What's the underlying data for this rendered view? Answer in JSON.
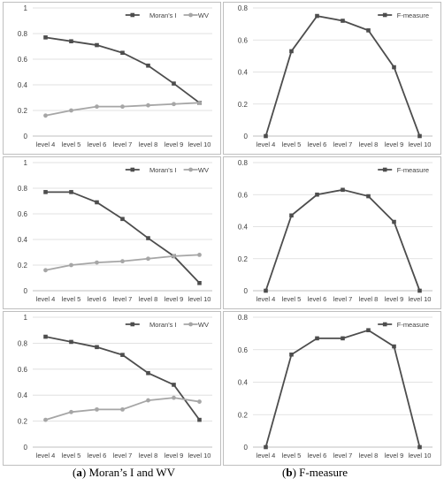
{
  "colors": {
    "morans": "#4d4d4d",
    "wv": "#a6a6a6",
    "fmeasure": "#4d4d4d",
    "frame": "#bfbfbf",
    "grid": "#d9d9d9"
  },
  "captions": {
    "a_label": "a",
    "a_text": "Moran’s I and WV",
    "b_label": "b",
    "b_text": "F-measure"
  },
  "chart_data": [
    {
      "type": "line",
      "legend": "top-right",
      "grid": "horizontal",
      "categories": [
        "level 4",
        "level 5",
        "level 6",
        "level 7",
        "level 8",
        "level 9",
        "level 10"
      ],
      "ylim": [
        0,
        1
      ],
      "yticks": [
        "0",
        "0.2",
        "0.4",
        "0.6",
        "0.8",
        "1"
      ],
      "series": [
        {
          "name": "Moran's I",
          "values": [
            0.77,
            0.74,
            0.71,
            0.65,
            0.55,
            0.41,
            0.26
          ]
        },
        {
          "name": "WV",
          "values": [
            0.16,
            0.2,
            0.23,
            0.23,
            0.24,
            0.25,
            0.26
          ]
        }
      ]
    },
    {
      "type": "line",
      "legend": "top-right",
      "grid": "horizontal",
      "categories": [
        "level 4",
        "level 5",
        "level 6",
        "level 7",
        "level 8",
        "level 9",
        "level 10"
      ],
      "ylim": [
        0,
        0.8
      ],
      "yticks": [
        "0",
        "0.2",
        "0.4",
        "0.6",
        "0.8"
      ],
      "series": [
        {
          "name": "F-measure",
          "values": [
            0,
            0.53,
            0.75,
            0.72,
            0.66,
            0.43,
            0
          ]
        }
      ]
    },
    {
      "type": "line",
      "legend": "top-right",
      "grid": "horizontal",
      "categories": [
        "level 4",
        "level 5",
        "level 6",
        "level 7",
        "level 8",
        "level 9",
        "level 10"
      ],
      "ylim": [
        0,
        1
      ],
      "yticks": [
        "0",
        "0.2",
        "0.4",
        "0.6",
        "0.8",
        "1"
      ],
      "series": [
        {
          "name": "Moran's I",
          "values": [
            0.77,
            0.77,
            0.69,
            0.56,
            0.41,
            0.27,
            0.06
          ]
        },
        {
          "name": "WV",
          "values": [
            0.16,
            0.2,
            0.22,
            0.23,
            0.25,
            0.27,
            0.28
          ]
        }
      ]
    },
    {
      "type": "line",
      "legend": "top-right",
      "grid": "horizontal",
      "categories": [
        "level 4",
        "level 5",
        "level 6",
        "level 7",
        "level 8",
        "level 9",
        "level 10"
      ],
      "ylim": [
        0,
        0.8
      ],
      "yticks": [
        "0",
        "0.2",
        "0.4",
        "0.6",
        "0.8"
      ],
      "series": [
        {
          "name": "F-measure",
          "values": [
            0,
            0.47,
            0.6,
            0.63,
            0.59,
            0.43,
            0
          ]
        }
      ]
    },
    {
      "type": "line",
      "legend": "top-right",
      "grid": "horizontal",
      "categories": [
        "level 4",
        "level 5",
        "level 6",
        "level 7",
        "level 8",
        "level 9",
        "level 10"
      ],
      "ylim": [
        0,
        1
      ],
      "yticks": [
        "0",
        "0.2",
        "0.4",
        "0.6",
        "0.8",
        "1"
      ],
      "series": [
        {
          "name": "Moran's I",
          "values": [
            0.85,
            0.81,
            0.77,
            0.71,
            0.57,
            0.48,
            0.21
          ]
        },
        {
          "name": "WV",
          "values": [
            0.21,
            0.27,
            0.29,
            0.29,
            0.36,
            0.38,
            0.35
          ]
        }
      ]
    },
    {
      "type": "line",
      "legend": "top-right",
      "grid": "horizontal",
      "categories": [
        "level 4",
        "level 5",
        "level 6",
        "level 7",
        "level 8",
        "level 9",
        "level 10"
      ],
      "ylim": [
        0,
        0.8
      ],
      "yticks": [
        "0",
        "0.2",
        "0.4",
        "0.6",
        "0.8"
      ],
      "series": [
        {
          "name": "F-measure",
          "values": [
            0,
            0.57,
            0.67,
            0.67,
            0.72,
            0.62,
            0
          ]
        }
      ]
    }
  ]
}
